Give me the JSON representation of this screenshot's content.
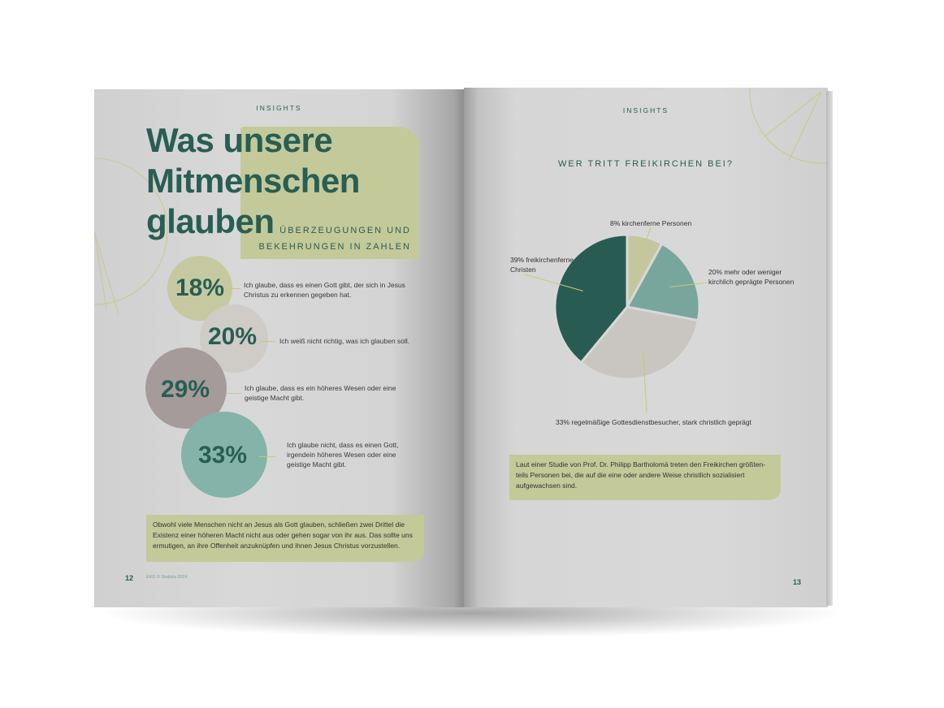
{
  "left_page": {
    "section_label": "INSIGHTS",
    "title_lines": [
      "Was unsere",
      "Mitmenschen",
      "glauben"
    ],
    "subtitle_lines": [
      "ÜBERZEUGUNGEN UND",
      "BEKEHRUNGEN IN ZAHLEN"
    ],
    "stats": [
      {
        "value": "18%",
        "text": "Ich glaube, dass es einen Gott gibt, der sich in Jesus Christus zu erkennen gegeben hat.",
        "color": "#c6c9a0"
      },
      {
        "value": "20%",
        "text": "Ich weiß nicht richtig, was ich glauben soll.",
        "color": "#cfcbc7"
      },
      {
        "value": "29%",
        "text": "Ich glaube, dass es ein höheres Wesen oder eine geistige Macht gibt.",
        "color": "#a59b9b"
      },
      {
        "value": "33%",
        "text": "Ich glaube nicht, dass es einen Gott, irgendein höheres Wesen oder eine geistige Macht gibt.",
        "color": "#84b3a9"
      }
    ],
    "note": "Obwohl viele Menschen nicht an Jesus als Gott glauben, schließen zwei Drittel die Existenz einer höheren Macht nicht aus oder gehen sogar von ihr aus. Das sollte uns ermutigen, an ihre Offenheit anzuknüpfen und ihnen Jesus Christus vorzustellen.",
    "page_number": "12",
    "source": "EKD © Statista 2024"
  },
  "right_page": {
    "section_label": "INSIGHTS",
    "note": "Laut einer Studie von Prof. Dr. Philipp Bartholomä treten den Freikirchen größten-teils Personen bei, die auf die eine oder andere Weise christlich sozialisiert aufgewachsen sind.",
    "page_number": "13"
  },
  "chart_data": {
    "type": "pie",
    "title": "WER TRITT FREIKIRCHEN BEI?",
    "slices": [
      {
        "label": "8% kirchenferne Personen",
        "value": 8,
        "color": "#c4c79d"
      },
      {
        "label": "20% mehr oder weniger kirchlich geprägte Personen",
        "value": 20,
        "color": "#78a69c"
      },
      {
        "label": "33% regelmäßige Gottesdienstbesucher, stark christlich geprägt",
        "value": 33,
        "color": "#c9c6c2"
      },
      {
        "label": "39% freikirchenferne Christen",
        "value": 39,
        "color": "#285c52"
      }
    ]
  }
}
